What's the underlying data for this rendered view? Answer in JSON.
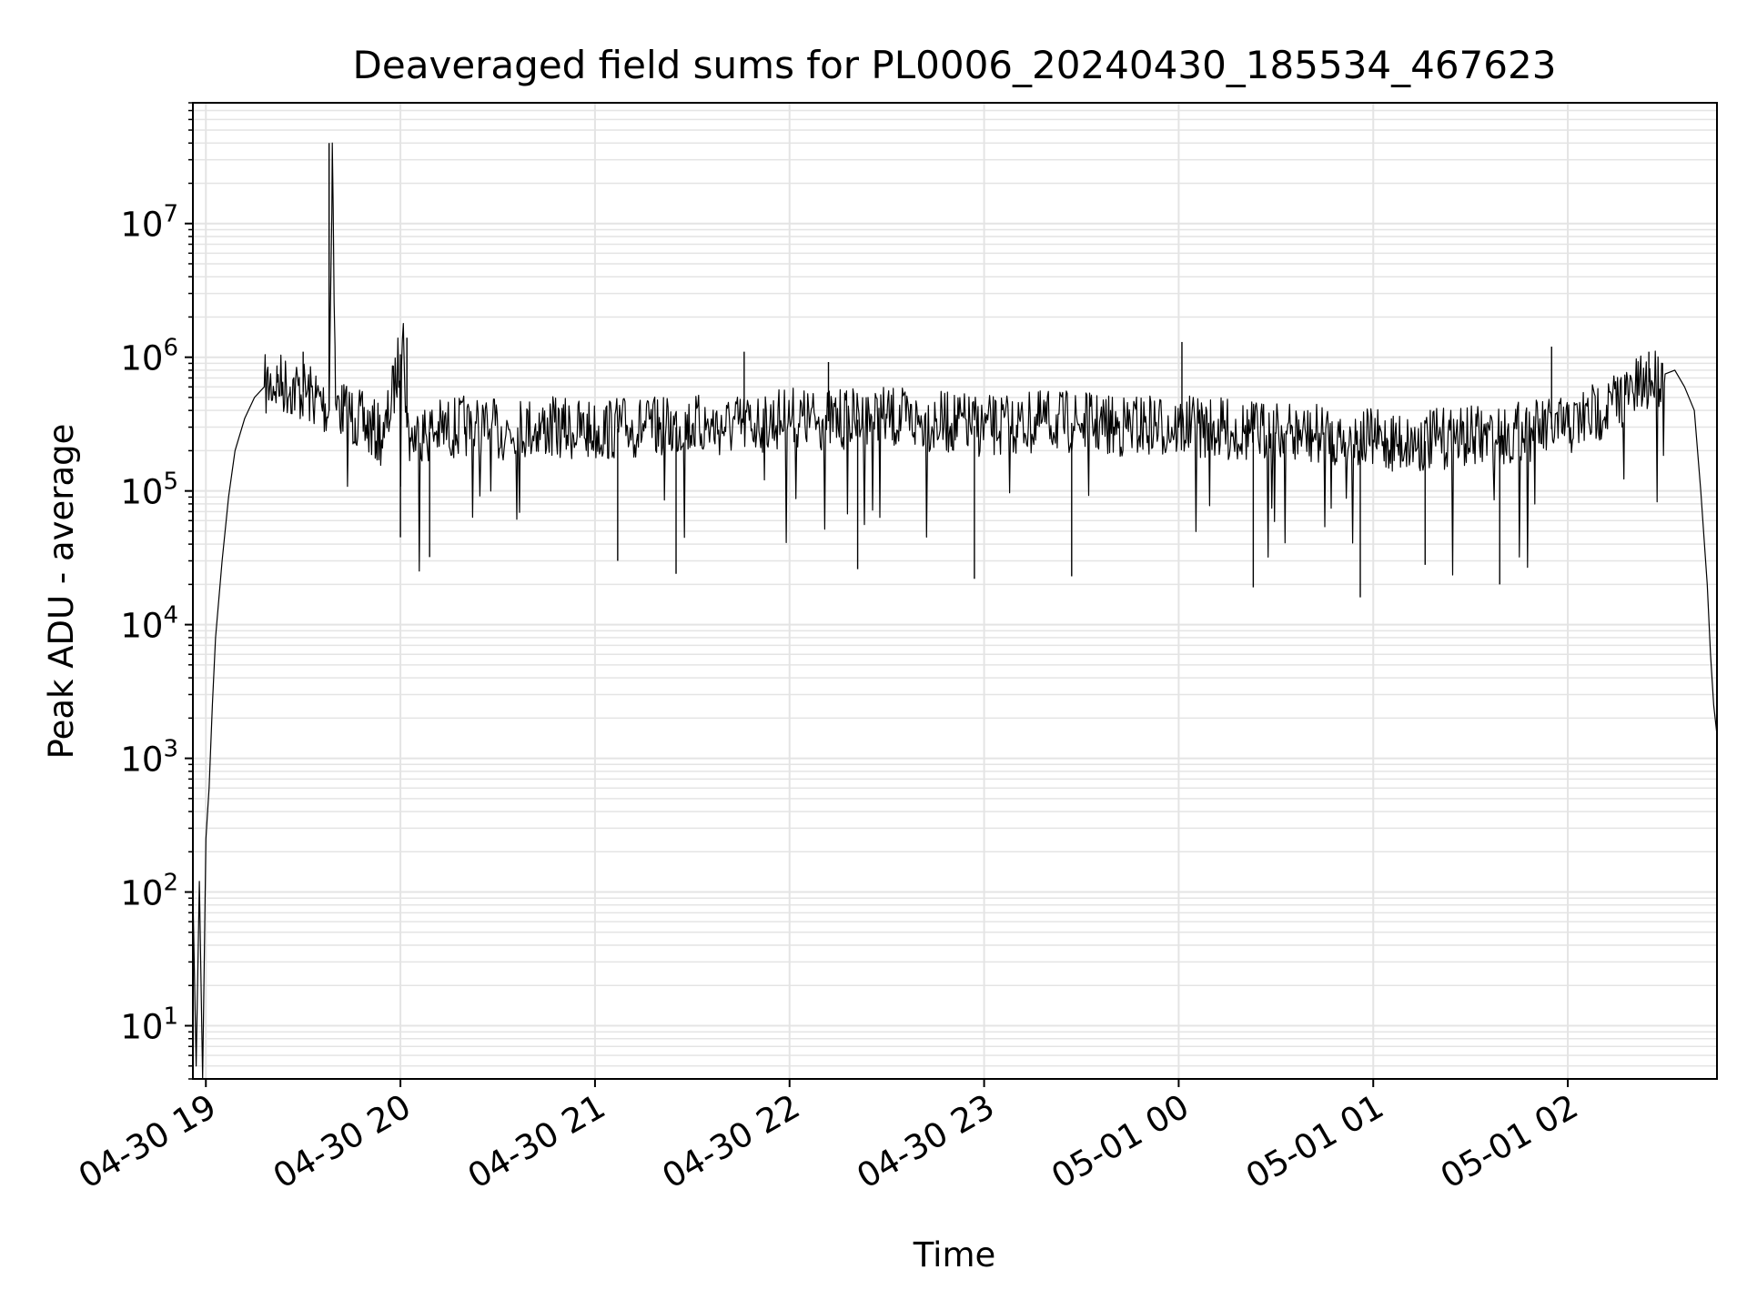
{
  "chart_data": {
    "type": "line",
    "title": "Deaveraged field sums for PL0006_20240430_185534_467623",
    "xlabel": "Time",
    "ylabel": "Peak ADU - average",
    "yscale": "log",
    "xlim": [
      "2024-04-30 18:56",
      "2024-05-01 02:46"
    ],
    "ylim": [
      4,
      80000000
    ],
    "grid": true,
    "line_color": "#000000",
    "grid_color": "#e4e4e4",
    "x_ticks": [
      {
        "value": "2024-04-30 19:00",
        "label": "04-30 19"
      },
      {
        "value": "2024-04-30 20:00",
        "label": "04-30 20"
      },
      {
        "value": "2024-04-30 21:00",
        "label": "04-30 21"
      },
      {
        "value": "2024-04-30 22:00",
        "label": "04-30 22"
      },
      {
        "value": "2024-04-30 23:00",
        "label": "04-30 23"
      },
      {
        "value": "2024-05-01 00:00",
        "label": "05-01 00"
      },
      {
        "value": "2024-05-01 01:00",
        "label": "05-01 01"
      },
      {
        "value": "2024-05-01 02:00",
        "label": "05-01 02"
      }
    ],
    "y_ticks": [
      {
        "value": 10,
        "base": "10",
        "exp": "1"
      },
      {
        "value": 100,
        "base": "10",
        "exp": "2"
      },
      {
        "value": 1000,
        "base": "10",
        "exp": "3"
      },
      {
        "value": 10000,
        "base": "10",
        "exp": "4"
      },
      {
        "value": 100000,
        "base": "10",
        "exp": "5"
      },
      {
        "value": 1000000,
        "base": "10",
        "exp": "6"
      },
      {
        "value": 10000000,
        "base": "10",
        "exp": "7"
      }
    ],
    "series": [
      {
        "x": [
          "2024-04-30 18:56",
          "2024-04-30 18:57",
          "2024-04-30 18:58",
          "2024-04-30 18:59",
          "2024-04-30 19:00",
          "2024-04-30 19:01",
          "2024-04-30 19:02",
          "2024-04-30 19:03",
          "2024-04-30 19:05",
          "2024-04-30 19:07",
          "2024-04-30 19:09",
          "2024-04-30 19:12",
          "2024-04-30 19:15",
          "2024-04-30 19:18",
          "2024-04-30 19:22",
          "2024-04-30 19:26",
          "2024-04-30 19:30",
          "2024-04-30 19:34",
          "2024-04-30 19:38",
          "2024-04-30 19:39",
          "2024-04-30 19:40",
          "2024-04-30 19:42",
          "2024-04-30 19:46",
          "2024-04-30 19:50",
          "2024-04-30 19:55",
          "2024-04-30 20:01",
          "2024-04-30 20:02",
          "2024-04-30 20:03",
          "2024-04-30 20:10",
          "2024-04-30 20:20",
          "2024-04-30 20:30",
          "2024-04-30 20:40",
          "2024-04-30 20:50",
          "2024-04-30 21:00",
          "2024-04-30 21:10",
          "2024-04-30 21:20",
          "2024-04-30 21:30",
          "2024-04-30 21:40",
          "2024-04-30 21:50",
          "2024-04-30 22:00",
          "2024-04-30 22:10",
          "2024-04-30 22:20",
          "2024-04-30 22:30",
          "2024-04-30 22:40",
          "2024-04-30 22:50",
          "2024-04-30 23:00",
          "2024-04-30 23:10",
          "2024-04-30 23:20",
          "2024-04-30 23:30",
          "2024-04-30 23:40",
          "2024-04-30 23:50",
          "2024-05-01 00:00",
          "2024-05-01 00:10",
          "2024-05-01 00:20",
          "2024-05-01 00:30",
          "2024-05-01 00:40",
          "2024-05-01 00:50",
          "2024-05-01 01:00",
          "2024-05-01 01:10",
          "2024-05-01 01:20",
          "2024-05-01 01:30",
          "2024-05-01 01:40",
          "2024-05-01 01:50",
          "2024-05-01 02:00",
          "2024-05-01 02:10",
          "2024-05-01 02:20",
          "2024-05-01 02:25",
          "2024-05-01 02:30",
          "2024-05-01 02:33",
          "2024-05-01 02:36",
          "2024-05-01 02:39",
          "2024-05-01 02:41",
          "2024-05-01 02:43",
          "2024-05-01 02:44",
          "2024-05-01 02:45",
          "2024-05-01 02:46"
        ],
        "y": [
          100,
          5,
          120,
          4,
          250,
          600,
          2500,
          8000,
          30000,
          90000,
          200000,
          350000,
          500000,
          600000,
          650000,
          600000,
          550000,
          500000,
          400000,
          40000000,
          450000,
          400000,
          350000,
          300000,
          250000,
          1400000,
          300000,
          250000,
          280000,
          300000,
          280000,
          300000,
          290000,
          280000,
          300000,
          290000,
          310000,
          300000,
          320000,
          350000,
          330000,
          340000,
          350000,
          330000,
          320000,
          300000,
          310000,
          330000,
          320000,
          300000,
          310000,
          300000,
          290000,
          280000,
          270000,
          260000,
          250000,
          240000,
          230000,
          240000,
          250000,
          260000,
          280000,
          300000,
          400000,
          550000,
          650000,
          750000,
          800000,
          600000,
          400000,
          100000,
          20000,
          6000,
          2500,
          1500
        ]
      }
    ],
    "spikes": [
      {
        "x": "2024-04-30 19:38",
        "y": 40000000
      },
      {
        "x": "2024-04-30 19:30",
        "y": 1100000
      },
      {
        "x": "2024-04-30 20:02",
        "y": 1400000
      },
      {
        "x": "2024-04-30 21:46",
        "y": 1100000
      },
      {
        "x": "2024-04-30 22:12",
        "y": 920000
      },
      {
        "x": "2024-05-01 00:01",
        "y": 1300000
      },
      {
        "x": "2024-05-01 01:55",
        "y": 1200000
      },
      {
        "x": "2024-05-01 02:25",
        "y": 1100000
      },
      {
        "x": "2024-04-30 20:00",
        "y": 45000
      },
      {
        "x": "2024-04-30 20:09",
        "y": 32000
      },
      {
        "x": "2024-04-30 21:07",
        "y": 30000
      },
      {
        "x": "2024-04-30 21:25",
        "y": 24000
      },
      {
        "x": "2024-04-30 22:21",
        "y": 26000
      },
      {
        "x": "2024-04-30 22:57",
        "y": 22000
      },
      {
        "x": "2024-04-30 23:27",
        "y": 23000
      },
      {
        "x": "2024-05-01 00:23",
        "y": 19000
      },
      {
        "x": "2024-05-01 00:56",
        "y": 16000
      },
      {
        "x": "2024-05-01 01:16",
        "y": 28000
      },
      {
        "x": "2024-05-01 01:39",
        "y": 20000
      }
    ]
  }
}
